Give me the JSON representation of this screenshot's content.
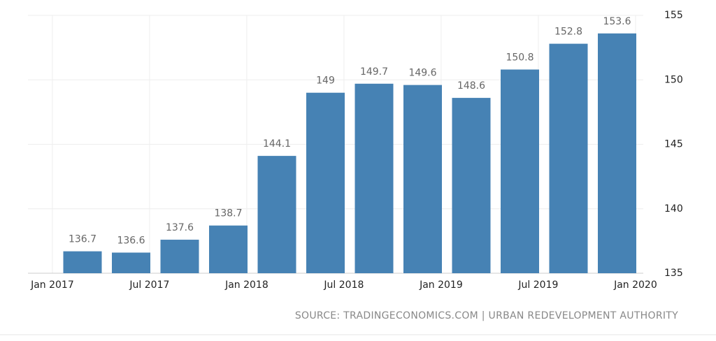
{
  "chart_data": {
    "type": "bar",
    "categories": [
      null,
      null,
      null,
      null,
      null,
      null,
      null,
      null,
      null,
      null,
      null,
      null
    ],
    "values": [
      136.7,
      136.6,
      137.6,
      138.7,
      144.1,
      149,
      149.7,
      149.6,
      148.6,
      150.8,
      152.8,
      153.6
    ],
    "x_labels": [
      "Jan 2017",
      "Jul 2017",
      "Jan 2018",
      "Jul 2018",
      "Jan 2019",
      "Jul 2019",
      "Jan 2020"
    ],
    "color": "#4682b4",
    "ylim": [
      135,
      155
    ],
    "yticks": [
      135,
      140,
      145,
      150,
      155
    ],
    "grid": true,
    "source": "SOURCE: TRADINGECONOMICS.COM | URBAN REDEVELOPMENT AUTHORITY"
  }
}
